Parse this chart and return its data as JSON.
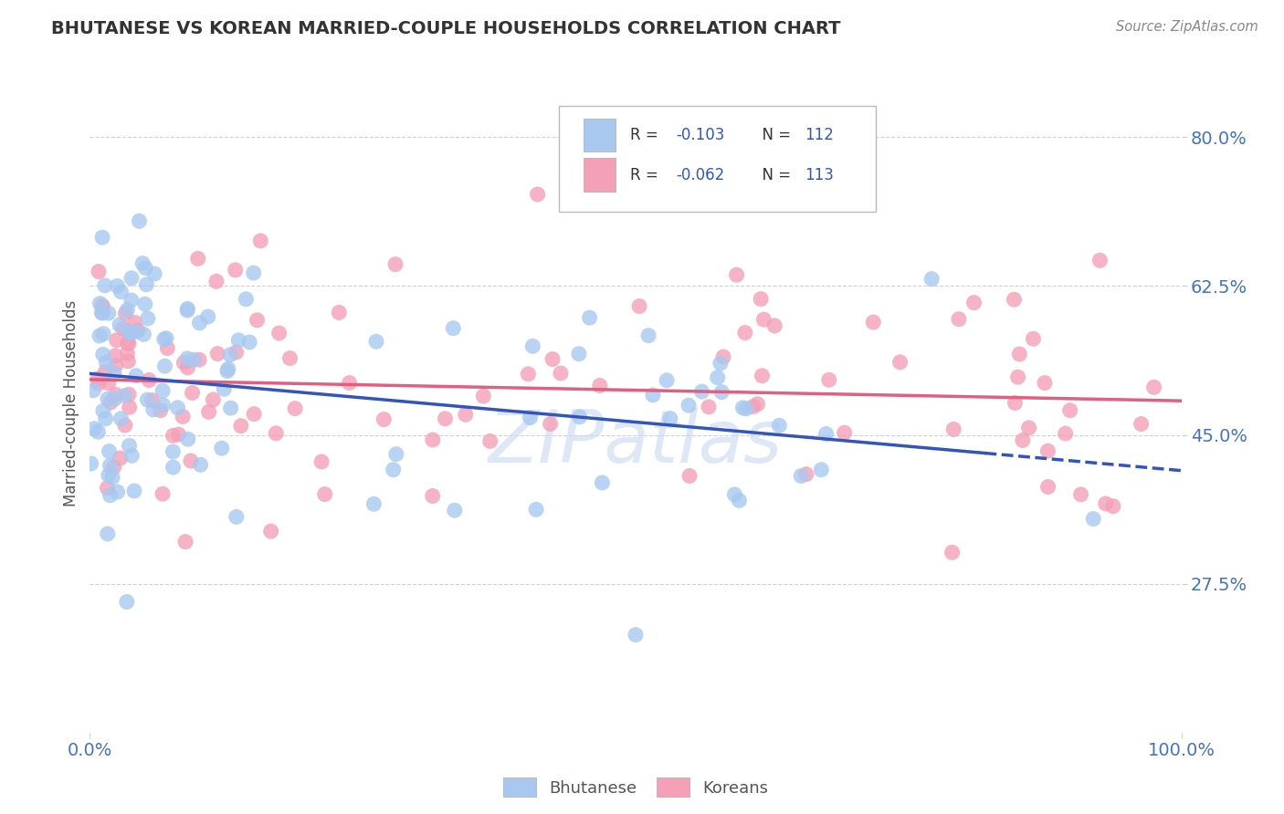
{
  "title": "BHUTANESE VS KOREAN MARRIED-COUPLE HOUSEHOLDS CORRELATION CHART",
  "source": "Source: ZipAtlas.com",
  "ylabel": "Married-couple Households",
  "xlim": [
    0.0,
    1.0
  ],
  "ylim": [
    0.1,
    0.875
  ],
  "yticks": [
    0.275,
    0.45,
    0.625,
    0.8
  ],
  "ytick_labels": [
    "27.5%",
    "45.0%",
    "62.5%",
    "80.0%"
  ],
  "xtick_labels": [
    "0.0%",
    "100.0%"
  ],
  "xticks": [
    0.0,
    1.0
  ],
  "color_bhutanese": "#a8c8f0",
  "color_korean": "#f4a0b8",
  "color_title": "#333333",
  "color_axis_labels": "#4472c4",
  "color_trendline_blue": "#3355bb",
  "color_trendline_pink": "#e06080",
  "watermark_color": "#c8d8f0",
  "grid_color": "#d0d0d0",
  "trendline_b_x0": 0.0,
  "trendline_b_y0": 0.522,
  "trendline_b_x1": 1.0,
  "trendline_b_y1": 0.408,
  "trendline_k_x0": 0.0,
  "trendline_k_y0": 0.515,
  "trendline_k_x1": 1.0,
  "trendline_k_y1": 0.49
}
